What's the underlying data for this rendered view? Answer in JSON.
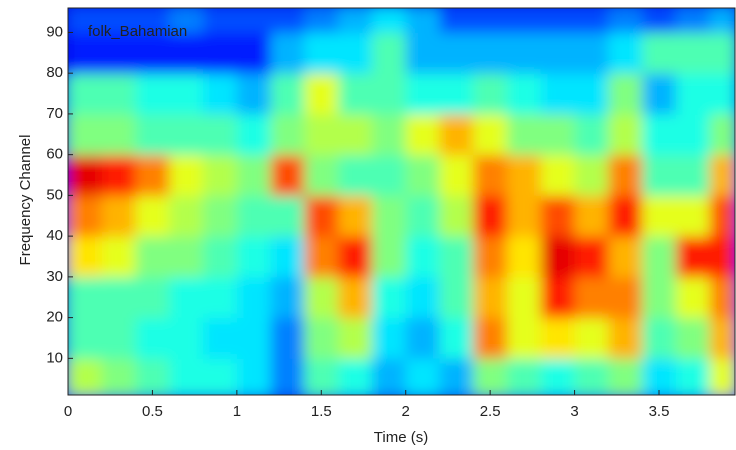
{
  "chart_data": {
    "type": "heatmap",
    "annotation": "folk_Bahamian",
    "xlabel": "Time (s)",
    "ylabel": "Frequency Channel",
    "colormap": "jet",
    "clim": [
      0,
      1
    ],
    "xlim": [
      0,
      3.95
    ],
    "ylim": [
      1,
      96
    ],
    "xticks": [
      0,
      0.5,
      1,
      1.5,
      2,
      2.5,
      3,
      3.5
    ],
    "yticks": [
      10,
      20,
      30,
      40,
      50,
      60,
      70,
      80,
      90
    ],
    "x_edges": [
      0,
      0.2,
      0.4,
      0.6,
      0.8,
      1,
      1.2,
      1.4,
      1.6,
      1.8,
      2,
      2.2,
      2.4,
      2.6,
      2.8,
      3,
      3.2,
      3.4,
      3.6,
      3.8,
      3.95
    ],
    "y_edges": [
      1,
      10,
      20,
      30,
      40,
      50,
      60,
      70,
      80,
      90,
      96
    ],
    "z": [
      [
        0.55,
        0.5,
        0.45,
        0.4,
        0.4,
        0.35,
        0.25,
        0.45,
        0.4,
        0.3,
        0.35,
        0.3,
        0.5,
        0.45,
        0.4,
        0.45,
        0.5,
        0.35,
        0.4,
        0.6
      ],
      [
        0.45,
        0.45,
        0.4,
        0.4,
        0.35,
        0.35,
        0.25,
        0.5,
        0.55,
        0.35,
        0.3,
        0.4,
        0.75,
        0.6,
        0.65,
        0.6,
        0.7,
        0.45,
        0.5,
        0.7
      ],
      [
        0.45,
        0.45,
        0.45,
        0.4,
        0.4,
        0.35,
        0.3,
        0.55,
        0.7,
        0.4,
        0.35,
        0.45,
        0.7,
        0.6,
        0.85,
        0.75,
        0.75,
        0.5,
        0.6,
        0.75
      ],
      [
        0.65,
        0.6,
        0.5,
        0.5,
        0.45,
        0.4,
        0.35,
        0.75,
        0.85,
        0.5,
        0.4,
        0.45,
        0.75,
        0.65,
        0.9,
        0.85,
        0.7,
        0.5,
        0.85,
        0.85
      ],
      [
        0.75,
        0.7,
        0.6,
        0.55,
        0.5,
        0.45,
        0.45,
        0.8,
        0.7,
        0.5,
        0.45,
        0.55,
        0.85,
        0.7,
        0.8,
        0.7,
        0.85,
        0.6,
        0.6,
        0.8
      ],
      [
        0.9,
        0.85,
        0.75,
        0.6,
        0.55,
        0.5,
        0.8,
        0.5,
        0.45,
        0.45,
        0.5,
        0.6,
        0.75,
        0.7,
        0.6,
        0.55,
        0.75,
        0.45,
        0.45,
        0.7
      ],
      [
        0.5,
        0.5,
        0.45,
        0.45,
        0.45,
        0.4,
        0.5,
        0.55,
        0.55,
        0.5,
        0.6,
        0.7,
        0.6,
        0.5,
        0.5,
        0.45,
        0.55,
        0.4,
        0.4,
        0.5
      ],
      [
        0.45,
        0.45,
        0.4,
        0.4,
        0.35,
        0.3,
        0.45,
        0.6,
        0.45,
        0.45,
        0.4,
        0.4,
        0.45,
        0.4,
        0.35,
        0.35,
        0.5,
        0.3,
        0.4,
        0.4
      ],
      [
        0.15,
        0.15,
        0.15,
        0.15,
        0.15,
        0.15,
        0.3,
        0.35,
        0.35,
        0.45,
        0.3,
        0.3,
        0.3,
        0.3,
        0.3,
        0.3,
        0.35,
        0.45,
        0.45,
        0.45
      ],
      [
        0.2,
        0.2,
        0.2,
        0.25,
        0.2,
        0.2,
        0.2,
        0.25,
        0.3,
        0.35,
        0.3,
        0.2,
        0.2,
        0.2,
        0.2,
        0.2,
        0.25,
        0.2,
        0.25,
        0.3
      ]
    ]
  }
}
